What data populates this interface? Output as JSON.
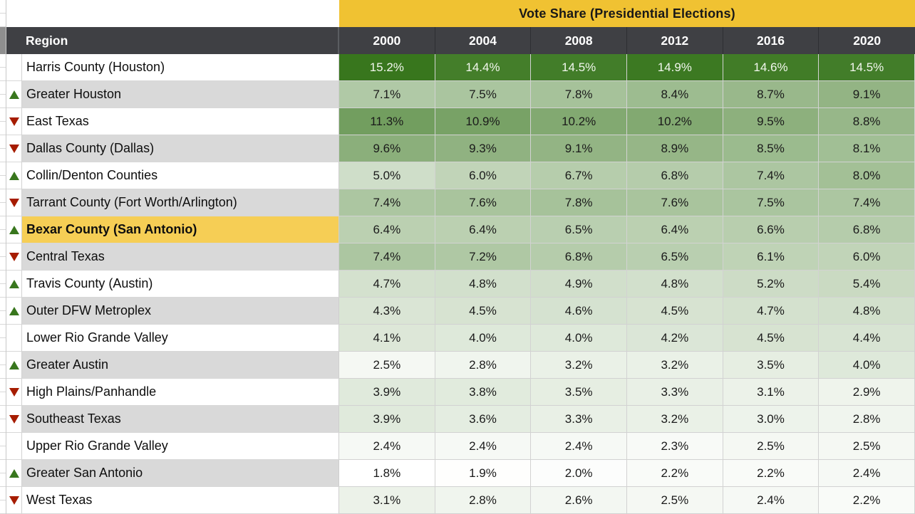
{
  "banner": {
    "title": "Vote Share (Presidential Elections)"
  },
  "header": {
    "region_label": "Region",
    "years": [
      "2000",
      "2004",
      "2008",
      "2012",
      "2016",
      "2020"
    ]
  },
  "rows": [
    {
      "region": "Harris County (Houston)",
      "trend": "none",
      "highlight": false,
      "values": [
        "15.2%",
        "14.4%",
        "14.5%",
        "14.9%",
        "14.6%",
        "14.5%"
      ]
    },
    {
      "region": "Greater Houston",
      "trend": "up",
      "highlight": false,
      "values": [
        "7.1%",
        "7.5%",
        "7.8%",
        "8.4%",
        "8.7%",
        "9.1%"
      ]
    },
    {
      "region": "East Texas",
      "trend": "down",
      "highlight": false,
      "values": [
        "11.3%",
        "10.9%",
        "10.2%",
        "10.2%",
        "9.5%",
        "8.8%"
      ]
    },
    {
      "region": "Dallas County (Dallas)",
      "trend": "down",
      "highlight": false,
      "values": [
        "9.6%",
        "9.3%",
        "9.1%",
        "8.9%",
        "8.5%",
        "8.1%"
      ]
    },
    {
      "region": "Collin/Denton Counties",
      "trend": "up",
      "highlight": false,
      "values": [
        "5.0%",
        "6.0%",
        "6.7%",
        "6.8%",
        "7.4%",
        "8.0%"
      ]
    },
    {
      "region": "Tarrant County (Fort Worth/Arlington)",
      "trend": "down",
      "highlight": false,
      "values": [
        "7.4%",
        "7.6%",
        "7.8%",
        "7.6%",
        "7.5%",
        "7.4%"
      ]
    },
    {
      "region": "Bexar County (San Antonio)",
      "trend": "up",
      "highlight": true,
      "values": [
        "6.4%",
        "6.4%",
        "6.5%",
        "6.4%",
        "6.6%",
        "6.8%"
      ]
    },
    {
      "region": "Central Texas",
      "trend": "down",
      "highlight": false,
      "values": [
        "7.4%",
        "7.2%",
        "6.8%",
        "6.5%",
        "6.1%",
        "6.0%"
      ]
    },
    {
      "region": "Travis County (Austin)",
      "trend": "up",
      "highlight": false,
      "values": [
        "4.7%",
        "4.8%",
        "4.9%",
        "4.8%",
        "5.2%",
        "5.4%"
      ]
    },
    {
      "region": "Outer DFW Metroplex",
      "trend": "up",
      "highlight": false,
      "values": [
        "4.3%",
        "4.5%",
        "4.6%",
        "4.5%",
        "4.7%",
        "4.8%"
      ]
    },
    {
      "region": "Lower Rio Grande Valley",
      "trend": "none",
      "highlight": false,
      "values": [
        "4.1%",
        "4.0%",
        "4.0%",
        "4.2%",
        "4.5%",
        "4.4%"
      ]
    },
    {
      "region": "Greater Austin",
      "trend": "up",
      "highlight": false,
      "values": [
        "2.5%",
        "2.8%",
        "3.2%",
        "3.2%",
        "3.5%",
        "4.0%"
      ]
    },
    {
      "region": "High Plains/Panhandle",
      "trend": "down",
      "highlight": false,
      "values": [
        "3.9%",
        "3.8%",
        "3.5%",
        "3.3%",
        "3.1%",
        "2.9%"
      ]
    },
    {
      "region": "Southeast Texas",
      "trend": "down",
      "highlight": false,
      "values": [
        "3.9%",
        "3.6%",
        "3.3%",
        "3.2%",
        "3.0%",
        "2.8%"
      ]
    },
    {
      "region": "Upper Rio Grande Valley",
      "trend": "none",
      "highlight": false,
      "values": [
        "2.4%",
        "2.4%",
        "2.4%",
        "2.3%",
        "2.5%",
        "2.5%"
      ]
    },
    {
      "region": "Greater San Antonio",
      "trend": "up",
      "highlight": false,
      "values": [
        "1.8%",
        "1.9%",
        "2.0%",
        "2.2%",
        "2.2%",
        "2.4%"
      ]
    },
    {
      "region": "West Texas",
      "trend": "down",
      "highlight": false,
      "values": [
        "3.1%",
        "2.8%",
        "2.6%",
        "2.5%",
        "2.4%",
        "2.2%"
      ]
    }
  ],
  "colors": {
    "banner_yellow": "#F0C232",
    "header_dark": "#3F4044",
    "header_separator": "#2E2F33",
    "highlight_yellow": "#F6CE55",
    "stripe_gray": "#D9D9D9",
    "stripe_white": "#FFFFFF",
    "scale_max_green": "#38761D",
    "trend_up_green": "#38761D",
    "trend_down_red": "#A61C00"
  },
  "scale": {
    "min": 1.8,
    "max": 15.2,
    "white_text_threshold": 0.85
  }
}
